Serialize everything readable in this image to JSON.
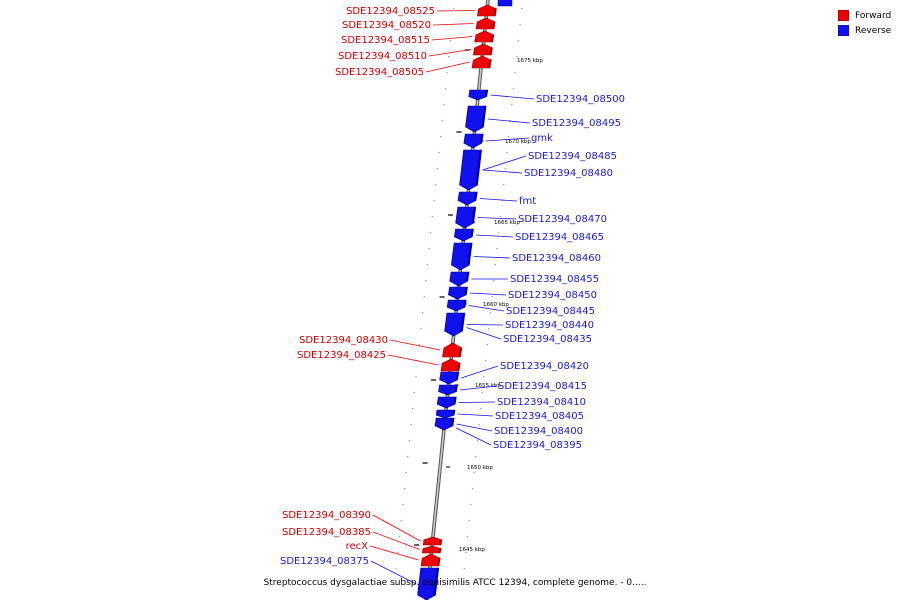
{
  "legend": {
    "items": [
      {
        "label": "Forward",
        "color": "#ee0000"
      },
      {
        "label": "Reverse",
        "color": "#1111ee"
      }
    ]
  },
  "caption": "Streptococcus dysgalactiae subsp. equisimilis ATCC 12394, complete genome. - 0.....",
  "axis_ticks": [
    {
      "label": "1675 kbp"
    },
    {
      "label": "1670 kbp"
    },
    {
      "label": "1665 kbp"
    },
    {
      "label": "1660 kbp"
    },
    {
      "label": "1655 kbp"
    },
    {
      "label": "1650 kbp"
    },
    {
      "label": "1645 kbp"
    }
  ],
  "genes": [
    {
      "name": "SDE12394_08525",
      "strand": "forward"
    },
    {
      "name": "SDE12394_08520",
      "strand": "forward"
    },
    {
      "name": "SDE12394_08515",
      "strand": "forward"
    },
    {
      "name": "SDE12394_08510",
      "strand": "forward"
    },
    {
      "name": "SDE12394_08505",
      "strand": "forward"
    },
    {
      "name": "SDE12394_08500",
      "strand": "reverse"
    },
    {
      "name": "SDE12394_08495",
      "strand": "reverse"
    },
    {
      "name": "gmk",
      "strand": "reverse"
    },
    {
      "name": "SDE12394_08485",
      "strand": "reverse"
    },
    {
      "name": "SDE12394_08480",
      "strand": "reverse"
    },
    {
      "name": "fmt",
      "strand": "reverse"
    },
    {
      "name": "SDE12394_08470",
      "strand": "reverse"
    },
    {
      "name": "SDE12394_08465",
      "strand": "reverse"
    },
    {
      "name": "SDE12394_08460",
      "strand": "reverse"
    },
    {
      "name": "SDE12394_08455",
      "strand": "reverse"
    },
    {
      "name": "SDE12394_08450",
      "strand": "reverse"
    },
    {
      "name": "SDE12394_08445",
      "strand": "reverse"
    },
    {
      "name": "SDE12394_08440",
      "strand": "reverse"
    },
    {
      "name": "SDE12394_08435",
      "strand": "reverse"
    },
    {
      "name": "SDE12394_08430",
      "strand": "forward"
    },
    {
      "name": "SDE12394_08425",
      "strand": "forward"
    },
    {
      "name": "SDE12394_08420",
      "strand": "reverse"
    },
    {
      "name": "SDE12394_08415",
      "strand": "reverse"
    },
    {
      "name": "SDE12394_08410",
      "strand": "reverse"
    },
    {
      "name": "SDE12394_08405",
      "strand": "reverse"
    },
    {
      "name": "SDE12394_08400",
      "strand": "reverse"
    },
    {
      "name": "SDE12394_08395",
      "strand": "reverse"
    },
    {
      "name": "SDE12394_08390",
      "strand": "forward"
    },
    {
      "name": "SDE12394_08385",
      "strand": "forward"
    },
    {
      "name": "recX",
      "strand": "forward"
    },
    {
      "name": "SDE12394_08375",
      "strand": "reverse"
    }
  ]
}
